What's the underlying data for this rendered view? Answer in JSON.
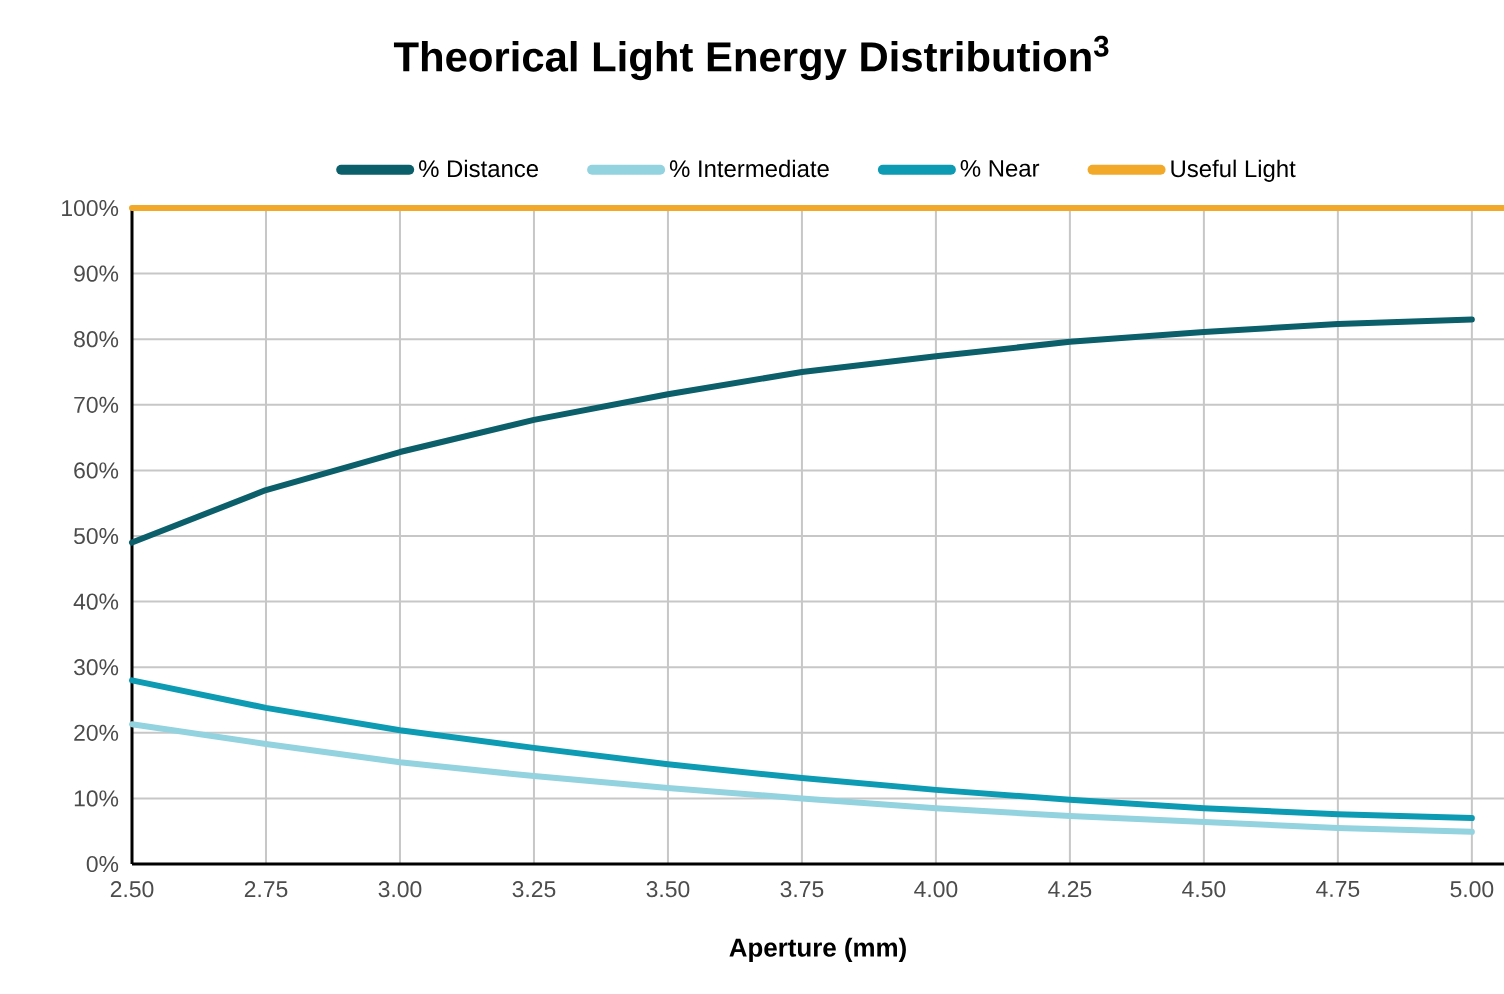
{
  "chart_data": {
    "type": "line",
    "title": "Theorical Light Energy Distribution$^{3}$",
    "xlabel": "Aperture (mm)",
    "xlim": [
      2.5,
      5.06
    ],
    "xticks": [
      {
        "value": 2.5,
        "label": "2.50"
      },
      {
        "value": 2.75,
        "label": "2.75"
      },
      {
        "value": 3.0,
        "label": "3.00"
      },
      {
        "value": 3.25,
        "label": "3.25"
      },
      {
        "value": 3.5,
        "label": "3.50"
      },
      {
        "value": 3.75,
        "label": "3.75"
      },
      {
        "value": 4.0,
        "label": "4.00"
      },
      {
        "value": 4.25,
        "label": "4.25"
      },
      {
        "value": 4.5,
        "label": "4.50"
      },
      {
        "value": 4.75,
        "label": "4.75"
      },
      {
        "value": 5.0,
        "label": "5.00"
      }
    ],
    "ylim": [
      0,
      100
    ],
    "yticks": [
      {
        "value": 0,
        "label": "0%"
      },
      {
        "value": 10,
        "label": "10%"
      },
      {
        "value": 20,
        "label": "20%"
      },
      {
        "value": 30,
        "label": "30%"
      },
      {
        "value": 40,
        "label": "40%"
      },
      {
        "value": 50,
        "label": "50%"
      },
      {
        "value": 60,
        "label": "60%"
      },
      {
        "value": 70,
        "label": "70%"
      },
      {
        "value": 80,
        "label": "80%"
      },
      {
        "value": 90,
        "label": "90%"
      },
      {
        "value": 100,
        "label": "100%"
      }
    ],
    "grid": true,
    "legend": "top",
    "marker": "none",
    "line_style": "solid",
    "x": [
      2.5,
      2.75,
      3.0,
      3.25,
      3.5,
      3.75,
      4.0,
      4.25,
      4.5,
      4.75,
      5.0
    ],
    "series": [
      {
        "name": "% Distance",
        "color": "#0b5f6b",
        "values": [
          49,
          57,
          62.8,
          67.7,
          71.6,
          75,
          77.4,
          79.6,
          81.1,
          82.3,
          83
        ]
      },
      {
        "name": "% Intermediate",
        "color": "#93d2df",
        "values": [
          21.3,
          18.3,
          15.5,
          13.4,
          11.6,
          10,
          8.5,
          7.3,
          6.4,
          5.5,
          4.9
        ]
      },
      {
        "name": "% Near",
        "color": "#0d9bb3",
        "values": [
          28,
          23.8,
          20.4,
          17.7,
          15.2,
          13.1,
          11.3,
          9.8,
          8.5,
          7.6,
          7
        ]
      },
      {
        "name": "Useful Light",
        "color": "#f2a92a",
        "x": [
          2.5,
          5.06
        ],
        "values": [
          100,
          100
        ]
      }
    ]
  }
}
